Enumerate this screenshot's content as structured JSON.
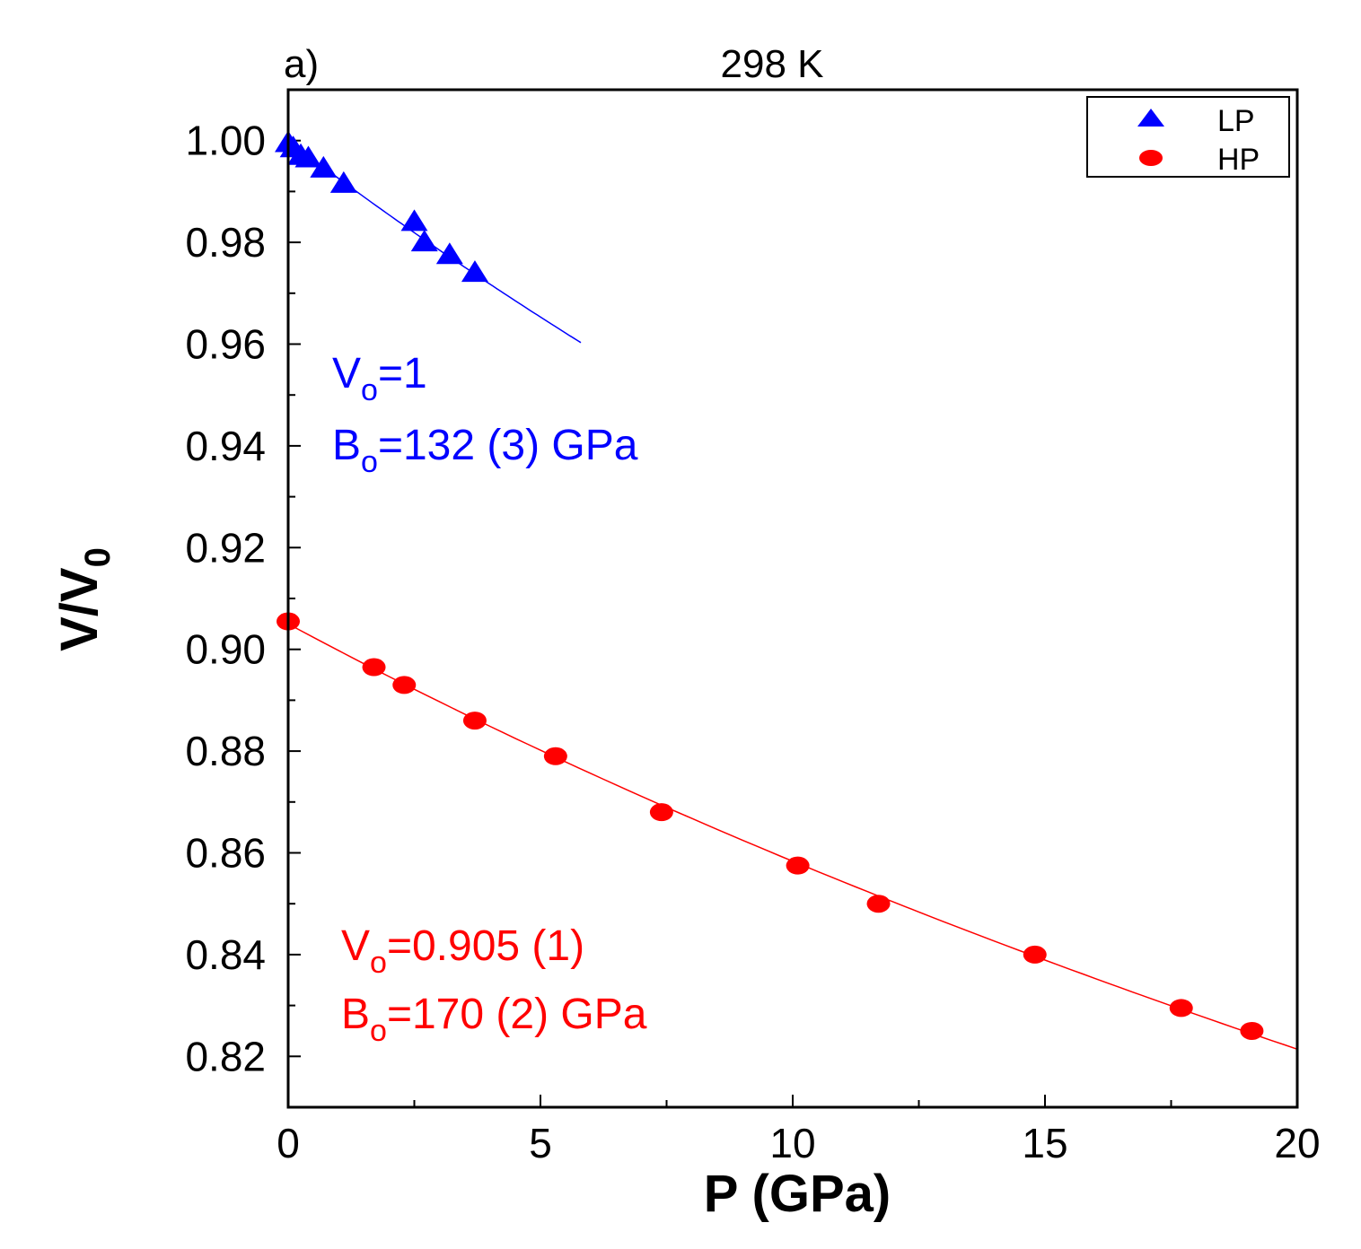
{
  "chart_data": {
    "type": "scatter",
    "panel_label": "a)",
    "title": "298 K",
    "xlabel": "P (GPa)",
    "ylabel": "V/V",
    "ylabel_subscript": "0",
    "xlim": [
      0,
      20
    ],
    "ylim": [
      0.81,
      1.01
    ],
    "x_ticks": [
      "0",
      "5",
      "10",
      "15",
      "20"
    ],
    "y_ticks": [
      "0.82",
      "0.84",
      "0.86",
      "0.88",
      "0.90",
      "0.92",
      "0.94",
      "0.96",
      "0.98",
      "1.00"
    ],
    "grid": false,
    "legend_position": "top-right",
    "series": [
      {
        "name": "LP",
        "color": "#0000ff",
        "marker": "triangle",
        "x": [
          0.0,
          0.1,
          0.25,
          0.4,
          0.7,
          1.1,
          2.5,
          2.7,
          3.2,
          3.7
        ],
        "y": [
          0.9995,
          0.9985,
          0.997,
          0.9965,
          0.9945,
          0.9915,
          0.984,
          0.98,
          0.9775,
          0.974
        ],
        "fit": {
          "x_start": 0,
          "x_end": 5.8,
          "V0": 1,
          "B0": 132
        }
      },
      {
        "name": "HP",
        "color": "#ff0000",
        "marker": "circle",
        "x": [
          0.0,
          1.7,
          2.3,
          3.7,
          5.3,
          7.4,
          10.1,
          11.7,
          14.8,
          17.7,
          19.1
        ],
        "y": [
          0.9055,
          0.8965,
          0.893,
          0.886,
          0.879,
          0.868,
          0.8575,
          0.85,
          0.84,
          0.8295,
          0.825
        ],
        "fit": {
          "x_start": 0,
          "x_end": 20,
          "V0": 0.905,
          "B0": 170
        }
      }
    ],
    "annotations": [
      {
        "color": "#0000ff",
        "lines": [
          {
            "main": "V",
            "sub": "o",
            "rest": "=1"
          },
          {
            "main": "B",
            "sub": "o",
            "rest": "=132 (3) GPa"
          }
        ]
      },
      {
        "color": "#ff0000",
        "lines": [
          {
            "main": "V",
            "sub": "o",
            "rest": "=0.905 (1)"
          },
          {
            "main": "B",
            "sub": "o",
            "rest": "=170 (2) GPa"
          }
        ]
      }
    ]
  }
}
